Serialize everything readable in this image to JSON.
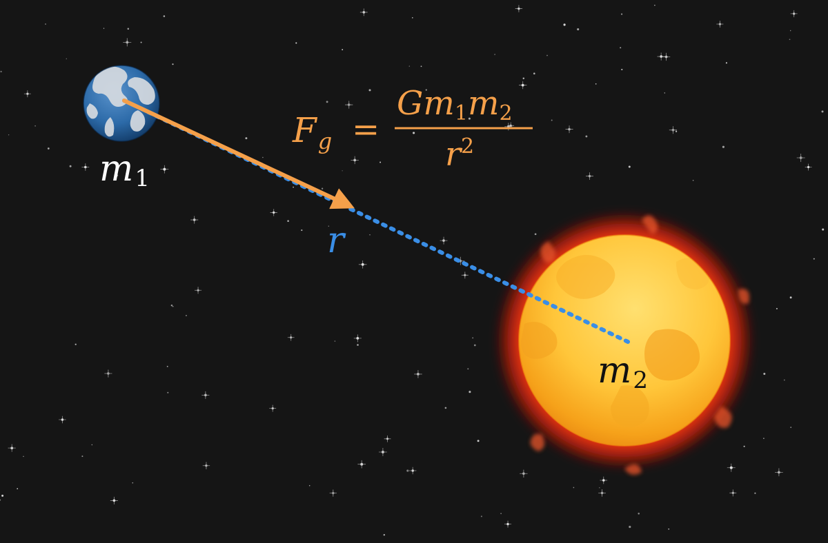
{
  "colors": {
    "background": "#151515",
    "star": "#e8e8e8",
    "force": "#f5a04a",
    "distance": "#3a8ee6",
    "label": "#ffffff",
    "sun_label": "#111111"
  },
  "bodies": {
    "m1": {
      "icon": "earth-icon",
      "label_base": "m",
      "label_sub": "1"
    },
    "m2": {
      "icon": "sun-icon",
      "label_base": "m",
      "label_sub": "2"
    }
  },
  "formula": {
    "lhs_base": "F",
    "lhs_sub": "g",
    "equals": "=",
    "num_G": "G",
    "num_m1": "m",
    "num_m1_sub": "1",
    "num_m2": "m",
    "num_m2_sub": "2",
    "den_r": "r",
    "den_exp": "2"
  },
  "distance_label": "r"
}
